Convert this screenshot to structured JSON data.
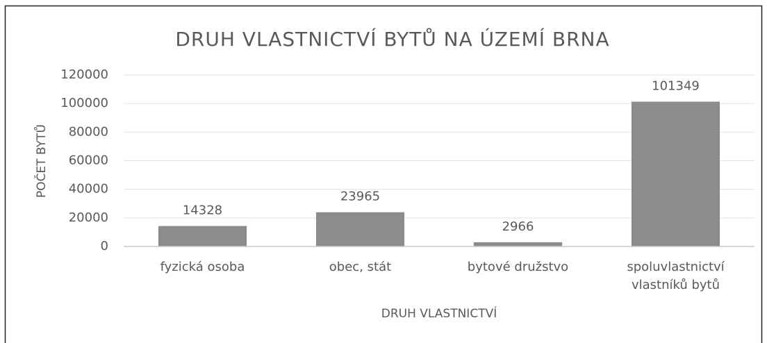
{
  "chart_data": {
    "type": "bar",
    "title": "DRUH VLASTNICTVÍ BYTŮ NA ÚZEMÍ BRNA",
    "x_label": "DRUH VLASTNICTVÍ",
    "y_label": "POČET BYTŮ",
    "categories": [
      "fyzická osoba",
      "obec, stát",
      "bytové družstvo",
      "spoluvlastnictví vlastníků bytů"
    ],
    "values": [
      14328,
      23965,
      2966,
      101349
    ],
    "color": "#8c8c8c",
    "ylim": [
      0,
      120000
    ],
    "yticks": [
      0,
      20000,
      40000,
      60000,
      80000,
      100000,
      120000
    ],
    "grid": true
  }
}
